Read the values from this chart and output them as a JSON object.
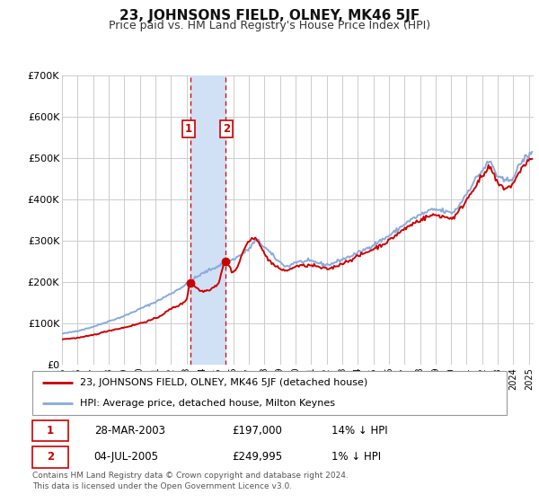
{
  "title": "23, JOHNSONS FIELD, OLNEY, MK46 5JF",
  "subtitle": "Price paid vs. HM Land Registry's House Price Index (HPI)",
  "title_fontsize": 11,
  "subtitle_fontsize": 9,
  "bg_color": "#ffffff",
  "plot_bg_color": "#ffffff",
  "grid_color": "#cccccc",
  "ylim": [
    0,
    700000
  ],
  "yticks": [
    0,
    100000,
    200000,
    300000,
    400000,
    500000,
    600000,
    700000
  ],
  "ytick_labels": [
    "£0",
    "£100K",
    "£200K",
    "£300K",
    "£400K",
    "£500K",
    "£600K",
    "£700K"
  ],
  "xlim_start": 1995.0,
  "xlim_end": 2025.3,
  "sale1_year": 2003.23,
  "sale1_price": 197000,
  "sale2_year": 2005.5,
  "sale2_price": 249995,
  "sale1_date": "28-MAR-2003",
  "sale1_hpi_pct": "14% ↓ HPI",
  "sale2_date": "04-JUL-2005",
  "sale2_hpi_pct": "1% ↓ HPI",
  "red_line_color": "#cc0000",
  "blue_line_color": "#88aadd",
  "shade_color": "#d0e0f5",
  "marker_box_color": "#cc0000",
  "legend_line1": "23, JOHNSONS FIELD, OLNEY, MK46 5JF (detached house)",
  "legend_line2": "HPI: Average price, detached house, Milton Keynes",
  "footer": "Contains HM Land Registry data © Crown copyright and database right 2024.\nThis data is licensed under the Open Government Licence v3.0."
}
